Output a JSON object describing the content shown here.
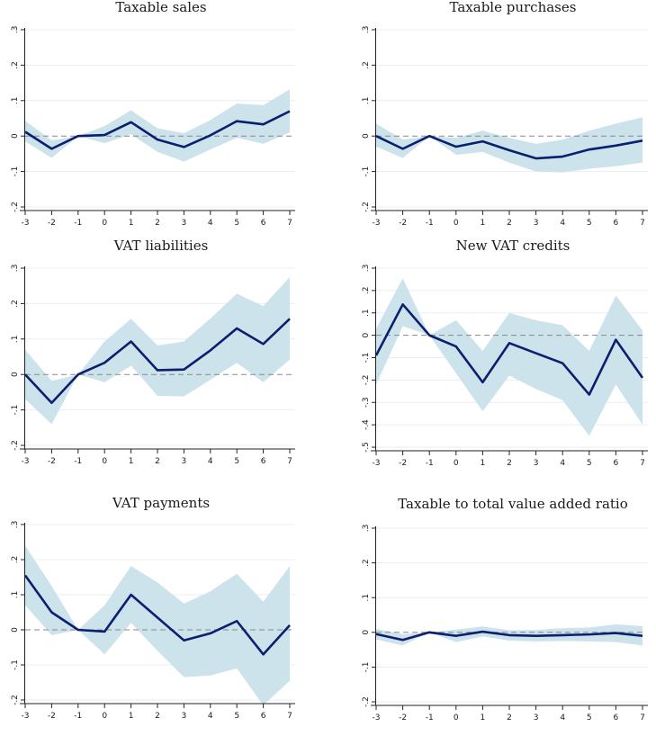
{
  "chart_data": [
    {
      "type": "line",
      "title": "Taxable sales",
      "x": [
        -3,
        -2,
        -1,
        0,
        1,
        2,
        3,
        4,
        5,
        6,
        7
      ],
      "estimate": [
        0.012,
        -0.036,
        0.0,
        0.003,
        0.039,
        -0.01,
        -0.031,
        0.002,
        0.042,
        0.033,
        0.07
      ],
      "ci_lower": [
        -0.015,
        -0.062,
        0.0,
        -0.02,
        0.005,
        -0.045,
        -0.072,
        -0.038,
        -0.005,
        -0.022,
        0.01
      ],
      "ci_upper": [
        0.043,
        -0.012,
        0.0,
        0.028,
        0.073,
        0.022,
        0.008,
        0.045,
        0.092,
        0.087,
        0.132
      ],
      "yticks": [
        "-.2",
        "-.1",
        "0",
        ".1",
        ".2",
        ".3"
      ],
      "ylim": [
        -0.2,
        0.3
      ],
      "xlabel": "",
      "ylabel": ""
    },
    {
      "type": "line",
      "title": "Taxable purchases",
      "x": [
        -3,
        -2,
        -1,
        0,
        1,
        2,
        3,
        4,
        5,
        6,
        7
      ],
      "estimate": [
        0.0,
        -0.036,
        0.0,
        -0.03,
        -0.015,
        -0.04,
        -0.063,
        -0.058,
        -0.038,
        -0.027,
        -0.013
      ],
      "ci_lower": [
        -0.03,
        -0.062,
        0.0,
        -0.053,
        -0.045,
        -0.075,
        -0.1,
        -0.103,
        -0.092,
        -0.085,
        -0.075
      ],
      "ci_upper": [
        0.035,
        -0.01,
        0.0,
        -0.005,
        0.015,
        -0.005,
        -0.022,
        -0.01,
        0.015,
        0.035,
        0.053
      ],
      "yticks": [
        "-.2",
        "-.1",
        "0",
        ".1",
        ".2",
        ".3"
      ],
      "ylim": [
        -0.2,
        0.3
      ],
      "xlabel": "",
      "ylabel": ""
    },
    {
      "type": "line",
      "title": "VAT liabilities",
      "x": [
        -3,
        -2,
        -1,
        0,
        1,
        2,
        3,
        4,
        5,
        6,
        7
      ],
      "estimate": [
        0.0,
        -0.08,
        0.0,
        0.033,
        0.093,
        0.012,
        0.014,
        0.068,
        0.13,
        0.086,
        0.157
      ],
      "ci_lower": [
        -0.07,
        -0.14,
        0.0,
        -0.022,
        0.025,
        -0.06,
        -0.062,
        -0.015,
        0.033,
        -0.022,
        0.042
      ],
      "ci_upper": [
        0.07,
        -0.018,
        0.0,
        0.093,
        0.157,
        0.082,
        0.093,
        0.158,
        0.228,
        0.193,
        0.275
      ],
      "yticks": [
        "-.2",
        "-.1",
        "0",
        ".1",
        ".2",
        ".3"
      ],
      "ylim": [
        -0.2,
        0.3
      ],
      "xlabel": "",
      "ylabel": ""
    },
    {
      "type": "line",
      "title": "New VAT credits",
      "x": [
        -3,
        -2,
        -1,
        0,
        1,
        2,
        3,
        4,
        5,
        6,
        7
      ],
      "estimate": [
        -0.09,
        0.138,
        0.0,
        -0.05,
        -0.21,
        -0.035,
        -0.08,
        -0.125,
        -0.265,
        -0.02,
        -0.19
      ],
      "ci_lower": [
        -0.22,
        0.04,
        0.0,
        -0.17,
        -0.34,
        -0.18,
        -0.24,
        -0.29,
        -0.45,
        -0.22,
        -0.4
      ],
      "ci_upper": [
        0.03,
        0.255,
        0.0,
        0.068,
        -0.07,
        0.1,
        0.067,
        0.045,
        -0.07,
        0.178,
        0.022
      ],
      "yticks": [
        "-.5",
        "-.4",
        "-.3",
        "-.2",
        "-.1",
        "0",
        ".1",
        ".2",
        ".3"
      ],
      "ylim": [
        -0.5,
        0.3
      ],
      "xlabel": "",
      "ylabel": ""
    },
    {
      "type": "line",
      "title": "VAT payments",
      "x": [
        -3,
        -2,
        -1,
        0,
        1,
        2,
        3,
        4,
        5,
        6,
        7
      ],
      "estimate": [
        0.155,
        0.05,
        0.0,
        -0.005,
        0.1,
        0.035,
        -0.03,
        -0.01,
        0.025,
        -0.07,
        0.013
      ],
      "ci_lower": [
        0.07,
        -0.015,
        0.0,
        -0.07,
        0.02,
        -0.06,
        -0.135,
        -0.13,
        -0.11,
        -0.215,
        -0.145
      ],
      "ci_upper": [
        0.24,
        0.125,
        0.0,
        0.07,
        0.182,
        0.135,
        0.075,
        0.11,
        0.16,
        0.08,
        0.182
      ],
      "yticks": [
        "-.2",
        "-.1",
        "0",
        ".1",
        ".2",
        ".3"
      ],
      "ylim": [
        -0.2,
        0.3
      ],
      "xlabel": "",
      "ylabel": ""
    },
    {
      "type": "line",
      "title": "Taxable to total value added ratio",
      "x": [
        -3,
        -2,
        -1,
        0,
        1,
        2,
        3,
        4,
        5,
        6,
        7
      ],
      "estimate": [
        -0.005,
        -0.022,
        0.0,
        -0.01,
        0.002,
        -0.008,
        -0.01,
        -0.008,
        -0.006,
        -0.002,
        -0.01
      ],
      "ci_lower": [
        -0.02,
        -0.038,
        0.0,
        -0.028,
        -0.012,
        -0.024,
        -0.026,
        -0.025,
        -0.026,
        -0.028,
        -0.038
      ],
      "ci_upper": [
        0.01,
        -0.005,
        0.0,
        0.008,
        0.017,
        0.006,
        0.007,
        0.012,
        0.014,
        0.023,
        0.018
      ],
      "yticks": [
        "-.2",
        "-.1",
        "0",
        ".1",
        ".2",
        ".3"
      ],
      "ylim": [
        -0.2,
        0.3
      ],
      "xlabel": "",
      "ylabel": ""
    }
  ],
  "colors": {
    "band": "#cde3ec",
    "line": "#0b1f6e",
    "zero": "#888888",
    "grid": "#e8eef2"
  }
}
